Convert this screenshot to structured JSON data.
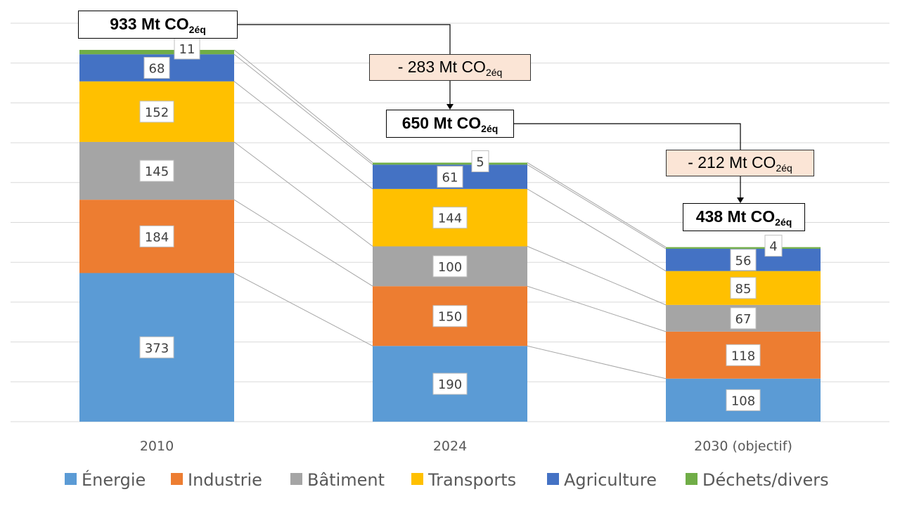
{
  "chart_data": {
    "type": "bar",
    "stacked": true,
    "title": "",
    "xlabel": "",
    "ylabel": "",
    "ylim": [
      0,
      1000
    ],
    "grid": true,
    "legend_position": "bottom",
    "categories": [
      "2010",
      "2024",
      "2030 (objectif)"
    ],
    "series": [
      {
        "name": "Énergie",
        "color": "#5b9bd5",
        "values": [
          373,
          190,
          108
        ]
      },
      {
        "name": "Industrie",
        "color": "#ed7d31",
        "values": [
          184,
          150,
          118
        ]
      },
      {
        "name": "Bâtiment",
        "color": "#a5a5a5",
        "values": [
          145,
          100,
          67
        ]
      },
      {
        "name": "Transports",
        "color": "#ffc000",
        "values": [
          152,
          144,
          85
        ]
      },
      {
        "name": "Agriculture",
        "color": "#4472c4",
        "values": [
          68,
          61,
          56
        ]
      },
      {
        "name": "Déchets/divers",
        "color": "#70ad47",
        "values": [
          11,
          5,
          4
        ]
      }
    ],
    "annotations": {
      "totals": [
        {
          "value": "933",
          "unit": "Mt CO",
          "sub": "2éq"
        },
        {
          "value": "650",
          "unit": "Mt CO",
          "sub": "2éq"
        },
        {
          "value": "438",
          "unit": "Mt CO",
          "sub": "2éq"
        }
      ],
      "deltas": [
        {
          "value": "- 283",
          "unit": "Mt CO",
          "sub": "2éq"
        },
        {
          "value": "- 212",
          "unit": "Mt CO",
          "sub": "2éq"
        }
      ]
    }
  }
}
